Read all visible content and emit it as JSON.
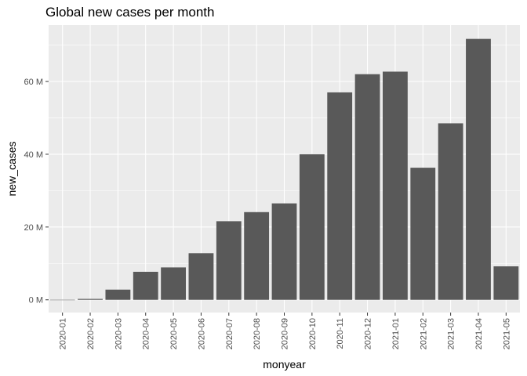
{
  "chart_data": {
    "type": "bar",
    "title": "Global new cases per month",
    "xlabel": "monyear",
    "ylabel": "new_cases",
    "categories": [
      "2020-01",
      "2020-02",
      "2020-03",
      "2020-04",
      "2020-05",
      "2020-06",
      "2020-07",
      "2020-08",
      "2020-09",
      "2020-10",
      "2020-11",
      "2020-12",
      "2021-01",
      "2021-02",
      "2021-03",
      "2021-04",
      "2021-05"
    ],
    "values": [
      10000,
      250000,
      2800000,
      7700000,
      8900000,
      12800000,
      21600000,
      24100000,
      26500000,
      40000000,
      57000000,
      62000000,
      62700000,
      36300000,
      48500000,
      71700000,
      9200000
    ],
    "ylim": [
      -3500000,
      75500000
    ],
    "yticks": [
      0,
      20000000,
      40000000,
      60000000
    ],
    "ytick_labels": [
      "0 M",
      "20 M",
      "40 M",
      "60 M"
    ],
    "grid": true,
    "legend": "none",
    "colors": {
      "bar": "#595959",
      "panel": "#ebebeb",
      "grid": "#ffffff"
    }
  }
}
